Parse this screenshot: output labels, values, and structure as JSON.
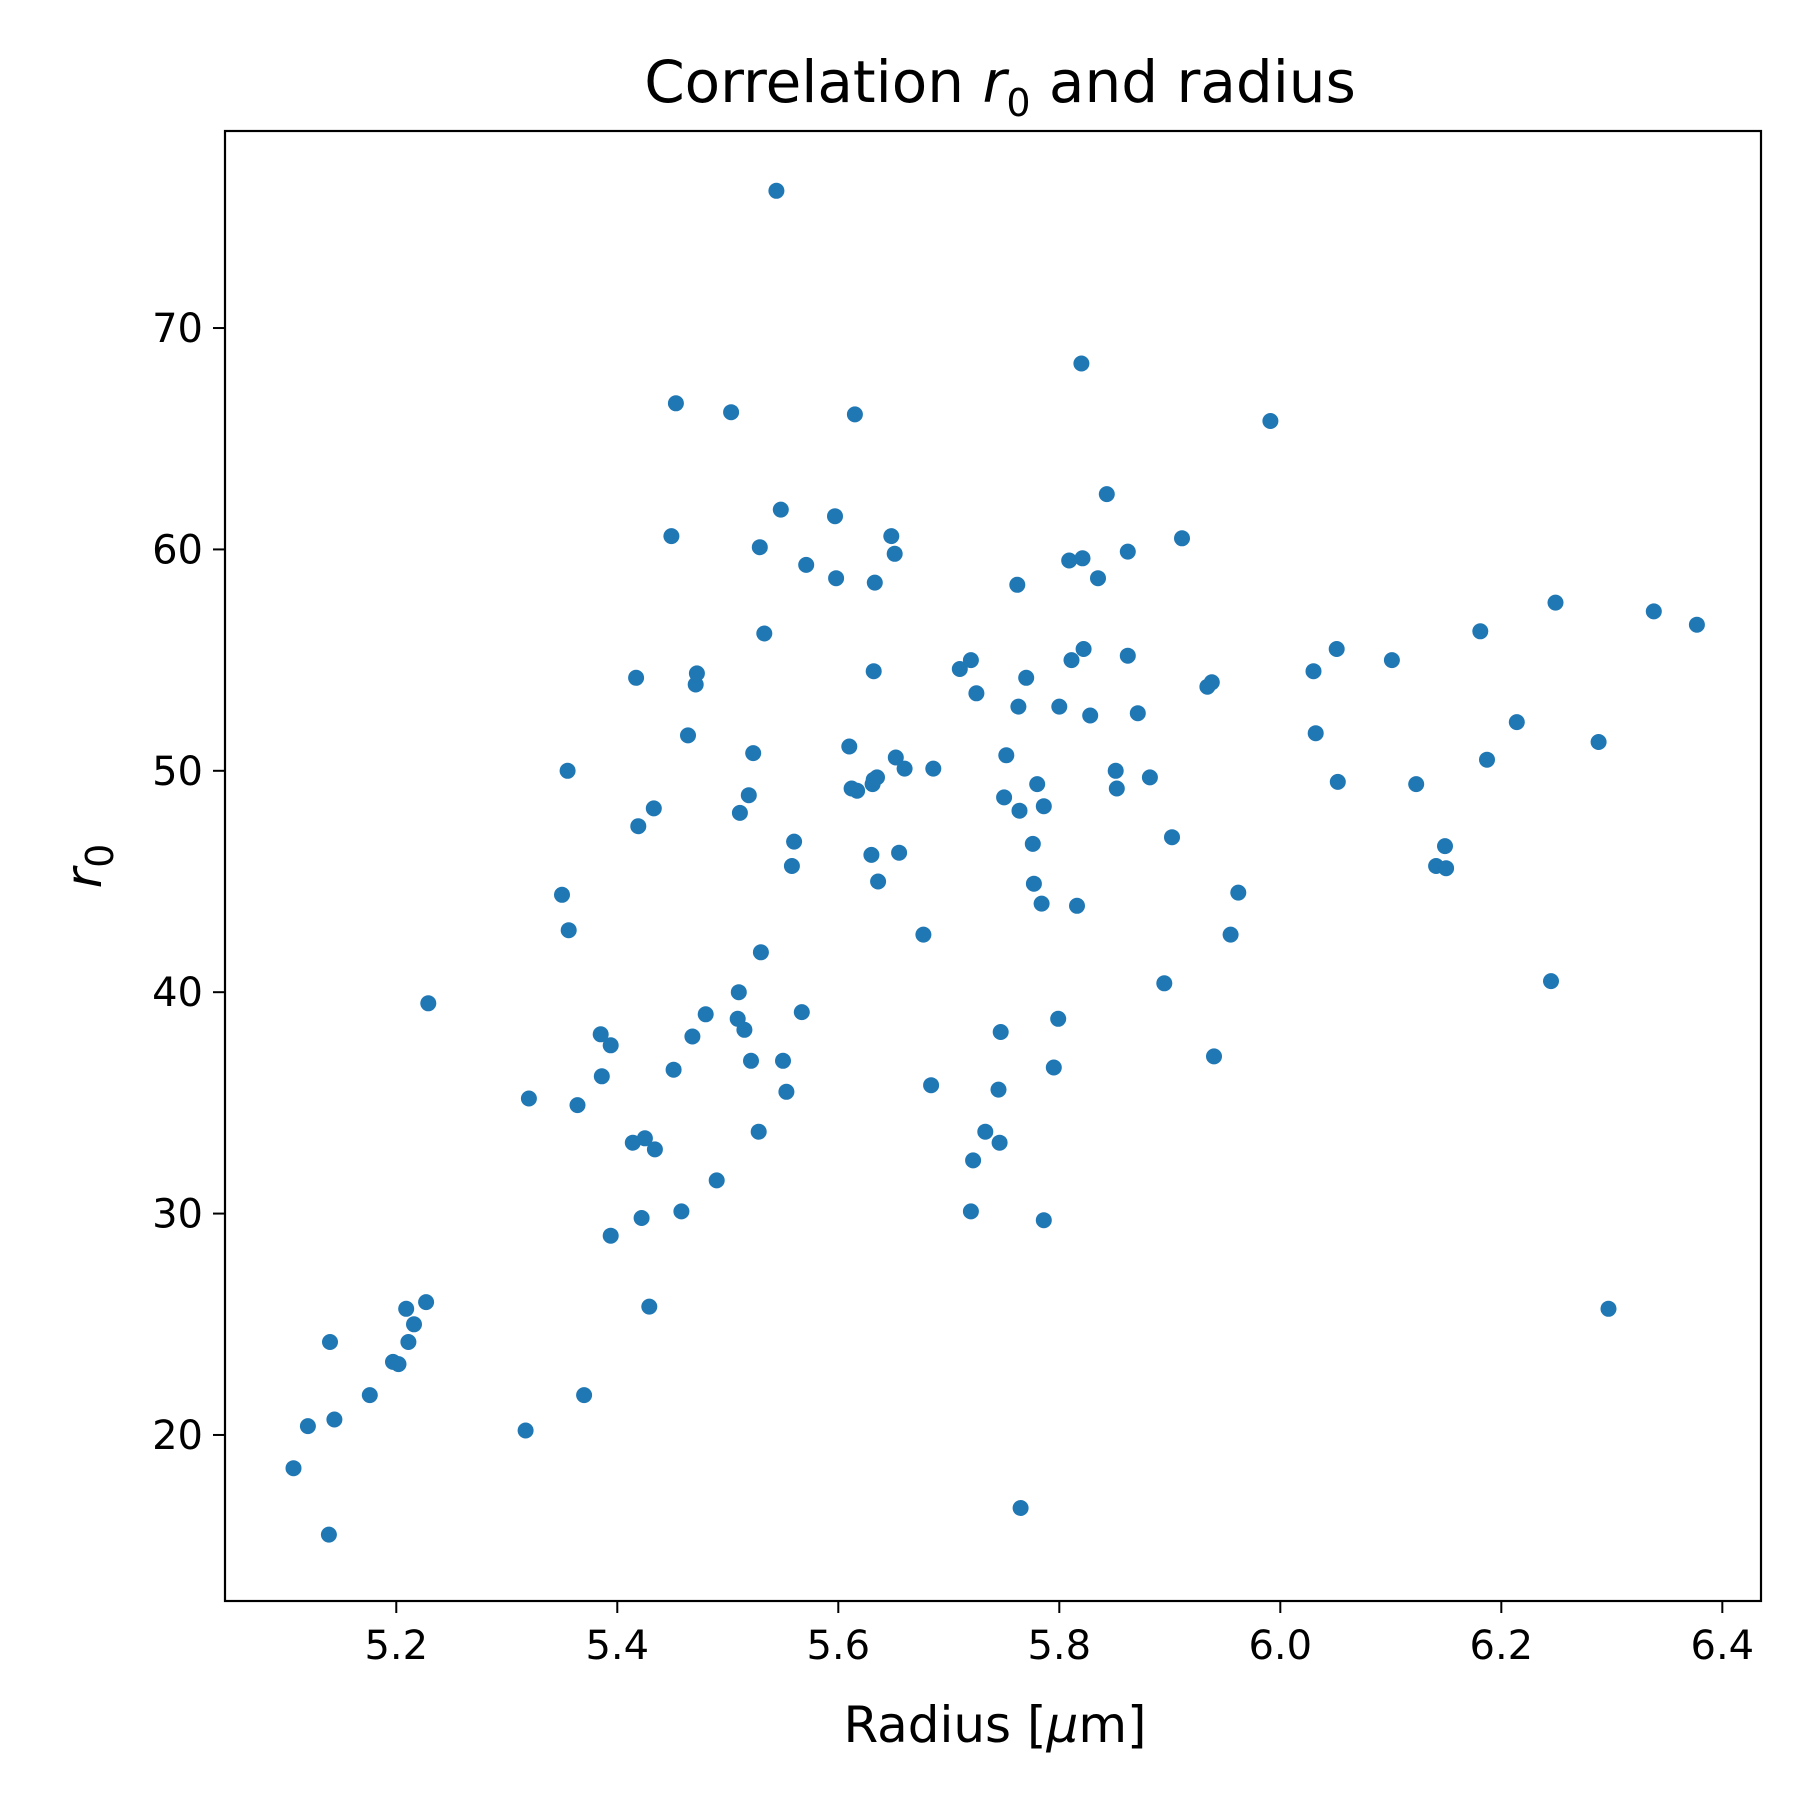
{
  "chart_data": {
    "type": "scatter",
    "title": {
      "prefix": "Correlation ",
      "var": "r",
      "sub": "0",
      "suffix": " and radius"
    },
    "xlabel": "Radius [μm]",
    "xlabel_parts": {
      "prefix": "Radius [",
      "mu": "μ",
      "suffix": "m]"
    },
    "ylabel": {
      "var": "r",
      "sub": "0"
    },
    "xlim": [
      5.045,
      6.435
    ],
    "ylim": [
      12.5,
      78.9
    ],
    "xticks": [
      5.2,
      5.4,
      5.6,
      5.8,
      6.0,
      6.2,
      6.4
    ],
    "xtick_labels": [
      "5.2",
      "5.4",
      "5.6",
      "5.8",
      "6.0",
      "6.2",
      "6.4"
    ],
    "yticks": [
      20,
      30,
      40,
      50,
      60,
      70
    ],
    "ytick_labels": [
      "20",
      "30",
      "40",
      "50",
      "60",
      "70"
    ],
    "grid": false,
    "marker_color": "#1f77b4",
    "points": [
      [
        5.107,
        18.5
      ],
      [
        5.12,
        20.4
      ],
      [
        5.139,
        15.5
      ],
      [
        5.14,
        24.2
      ],
      [
        5.144,
        20.7
      ],
      [
        5.176,
        21.8
      ],
      [
        5.197,
        23.3
      ],
      [
        5.202,
        23.2
      ],
      [
        5.209,
        25.7
      ],
      [
        5.211,
        24.2
      ],
      [
        5.216,
        25.0
      ],
      [
        5.227,
        26.0
      ],
      [
        5.229,
        39.5
      ],
      [
        5.317,
        20.2
      ],
      [
        5.32,
        35.2
      ],
      [
        5.35,
        44.4
      ],
      [
        5.355,
        50.0
      ],
      [
        5.356,
        42.8
      ],
      [
        5.364,
        34.9
      ],
      [
        5.37,
        21.8
      ],
      [
        5.385,
        38.1
      ],
      [
        5.386,
        36.2
      ],
      [
        5.394,
        37.6
      ],
      [
        5.394,
        29.0
      ],
      [
        5.414,
        33.2
      ],
      [
        5.417,
        54.2
      ],
      [
        5.419,
        47.5
      ],
      [
        5.422,
        29.8
      ],
      [
        5.425,
        33.4
      ],
      [
        5.429,
        25.8
      ],
      [
        5.433,
        48.3
      ],
      [
        5.434,
        32.9
      ],
      [
        5.449,
        60.6
      ],
      [
        5.451,
        36.5
      ],
      [
        5.453,
        66.6
      ],
      [
        5.458,
        30.1
      ],
      [
        5.464,
        51.6
      ],
      [
        5.468,
        38.0
      ],
      [
        5.471,
        53.9
      ],
      [
        5.472,
        54.4
      ],
      [
        5.48,
        39.0
      ],
      [
        5.49,
        31.5
      ],
      [
        5.503,
        66.2
      ],
      [
        5.509,
        38.8
      ],
      [
        5.51,
        40.0
      ],
      [
        5.511,
        48.1
      ],
      [
        5.515,
        38.3
      ],
      [
        5.519,
        48.9
      ],
      [
        5.521,
        36.9
      ],
      [
        5.523,
        50.8
      ],
      [
        5.528,
        33.7
      ],
      [
        5.529,
        60.1
      ],
      [
        5.53,
        41.8
      ],
      [
        5.533,
        56.2
      ],
      [
        5.544,
        76.2
      ],
      [
        5.548,
        61.8
      ],
      [
        5.55,
        36.9
      ],
      [
        5.553,
        35.5
      ],
      [
        5.558,
        45.7
      ],
      [
        5.56,
        46.8
      ],
      [
        5.567,
        39.1
      ],
      [
        5.571,
        59.3
      ],
      [
        5.597,
        61.5
      ],
      [
        5.598,
        58.7
      ],
      [
        5.61,
        51.1
      ],
      [
        5.612,
        49.2
      ],
      [
        5.615,
        66.1
      ],
      [
        5.617,
        49.1
      ],
      [
        5.63,
        46.2
      ],
      [
        5.631,
        49.4
      ],
      [
        5.632,
        49.6
      ],
      [
        5.632,
        54.5
      ],
      [
        5.633,
        58.5
      ],
      [
        5.635,
        49.7
      ],
      [
        5.636,
        45.0
      ],
      [
        5.648,
        60.6
      ],
      [
        5.651,
        59.8
      ],
      [
        5.652,
        50.6
      ],
      [
        5.655,
        46.3
      ],
      [
        5.66,
        50.1
      ],
      [
        5.677,
        42.6
      ],
      [
        5.684,
        35.8
      ],
      [
        5.686,
        50.1
      ],
      [
        5.71,
        54.6
      ],
      [
        5.72,
        55.0
      ],
      [
        5.72,
        30.1
      ],
      [
        5.722,
        32.4
      ],
      [
        5.725,
        53.5
      ],
      [
        5.733,
        33.7
      ],
      [
        5.745,
        35.6
      ],
      [
        5.746,
        33.2
      ],
      [
        5.747,
        38.2
      ],
      [
        5.75,
        48.8
      ],
      [
        5.752,
        50.7
      ],
      [
        5.762,
        58.4
      ],
      [
        5.763,
        52.9
      ],
      [
        5.764,
        48.2
      ],
      [
        5.765,
        16.7
      ],
      [
        5.77,
        54.2
      ],
      [
        5.776,
        46.7
      ],
      [
        5.777,
        44.9
      ],
      [
        5.78,
        49.4
      ],
      [
        5.784,
        44.0
      ],
      [
        5.786,
        48.4
      ],
      [
        5.786,
        29.7
      ],
      [
        5.795,
        36.6
      ],
      [
        5.799,
        38.8
      ],
      [
        5.8,
        52.9
      ],
      [
        5.809,
        59.5
      ],
      [
        5.811,
        55.0
      ],
      [
        5.816,
        43.9
      ],
      [
        5.82,
        68.4
      ],
      [
        5.821,
        59.6
      ],
      [
        5.822,
        55.5
      ],
      [
        5.828,
        52.5
      ],
      [
        5.835,
        58.7
      ],
      [
        5.843,
        62.5
      ],
      [
        5.851,
        50.0
      ],
      [
        5.852,
        49.2
      ],
      [
        5.862,
        59.9
      ],
      [
        5.862,
        55.2
      ],
      [
        5.871,
        52.6
      ],
      [
        5.882,
        49.7
      ],
      [
        5.895,
        40.4
      ],
      [
        5.902,
        47.0
      ],
      [
        5.911,
        60.5
      ],
      [
        5.934,
        53.8
      ],
      [
        5.938,
        54.0
      ],
      [
        5.94,
        37.1
      ],
      [
        5.955,
        42.6
      ],
      [
        5.962,
        44.5
      ],
      [
        5.991,
        65.8
      ],
      [
        6.03,
        54.5
      ],
      [
        6.032,
        51.7
      ],
      [
        6.051,
        55.5
      ],
      [
        6.052,
        49.5
      ],
      [
        6.101,
        55.0
      ],
      [
        6.123,
        49.4
      ],
      [
        6.141,
        45.7
      ],
      [
        6.149,
        46.6
      ],
      [
        6.15,
        45.6
      ],
      [
        6.181,
        56.3
      ],
      [
        6.187,
        50.5
      ],
      [
        6.214,
        52.2
      ],
      [
        6.245,
        40.5
      ],
      [
        6.249,
        57.6
      ],
      [
        6.288,
        51.3
      ],
      [
        6.297,
        25.7
      ],
      [
        6.338,
        57.2
      ],
      [
        6.377,
        56.6
      ]
    ]
  }
}
